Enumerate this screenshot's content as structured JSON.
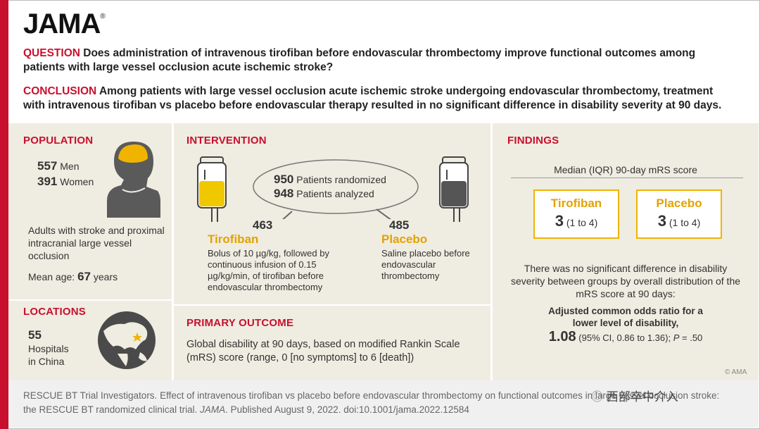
{
  "logo": "JAMA",
  "question": {
    "keyword": "QUESTION",
    "text": "Does administration of intravenous tirofiban before endovascular thrombectomy improve functional outcomes among patients with large vessel occlusion acute ischemic stroke?"
  },
  "conclusion": {
    "keyword": "CONCLUSION",
    "text": "Among patients with large vessel occlusion acute ischemic stroke undergoing endovascular thrombectomy, treatment with intravenous tirofiban vs placebo before endovascular therapy resulted in no significant difference in disability severity at 90 days."
  },
  "population": {
    "header": "POPULATION",
    "men_count": "557",
    "men_label": "Men",
    "women_count": "391",
    "women_label": "Women",
    "description": "Adults with stroke and proximal intracranial large vessel occlusion",
    "age_label": "Mean age:",
    "age_value": "67",
    "age_unit": "years"
  },
  "locations": {
    "header": "LOCATIONS",
    "count": "55",
    "line1": "Hospitals",
    "line2": "in China"
  },
  "intervention": {
    "header": "INTERVENTION",
    "randomized_count": "950",
    "randomized_label": "Patients randomized",
    "analyzed_count": "948",
    "analyzed_label": "Patients analyzed",
    "tirofiban_n": "463",
    "tirofiban_name": "Tirofiban",
    "tirofiban_desc": "Bolus of 10 µg/kg, followed by continuous infusion of 0.15 µg/kg/min, of tirofiban before endovascular thrombectomy",
    "placebo_n": "485",
    "placebo_name": "Placebo",
    "placebo_desc": "Saline placebo before endovascular thrombectomy"
  },
  "primary_outcome": {
    "header": "PRIMARY OUTCOME",
    "text": "Global disability at 90 days, based on modified Rankin Scale (mRS) score (range, 0 [no symptoms] to 6 [death])"
  },
  "findings": {
    "header": "FINDINGS",
    "subheader": "Median (IQR) 90-day mRS score",
    "tirofiban_name": "Tirofiban",
    "tirofiban_median": "3",
    "tirofiban_iqr": "(1 to 4)",
    "placebo_name": "Placebo",
    "placebo_median": "3",
    "placebo_iqr": "(1 to 4)",
    "summary": "There was no significant difference in disability severity between groups by overall distribution of the mRS score at 90 days:",
    "or_label": "Adjusted common odds ratio for a lower level of disability,",
    "or_value": "1.08",
    "or_ci": "(95% CI, 0.86 to 1.36);",
    "p_label": "P",
    "p_value": "= .50",
    "copyright": "© AMA"
  },
  "citation": {
    "text": "RESCUE BT Trial Investigators. Effect of intravenous tirofiban vs placebo before endovascular thrombectomy on functional outcomes in large vessel occlusion stroke: the RESCUE BT randomized clinical trial.",
    "journal": "JAMA",
    "published": ". Published August 9, 2022. doi:10.1001/jama.2022.12584"
  },
  "watermark": "西部卒中介入",
  "colors": {
    "accent_red": "#c8102e",
    "gold": "#e3a200",
    "panel": "#efece1"
  }
}
